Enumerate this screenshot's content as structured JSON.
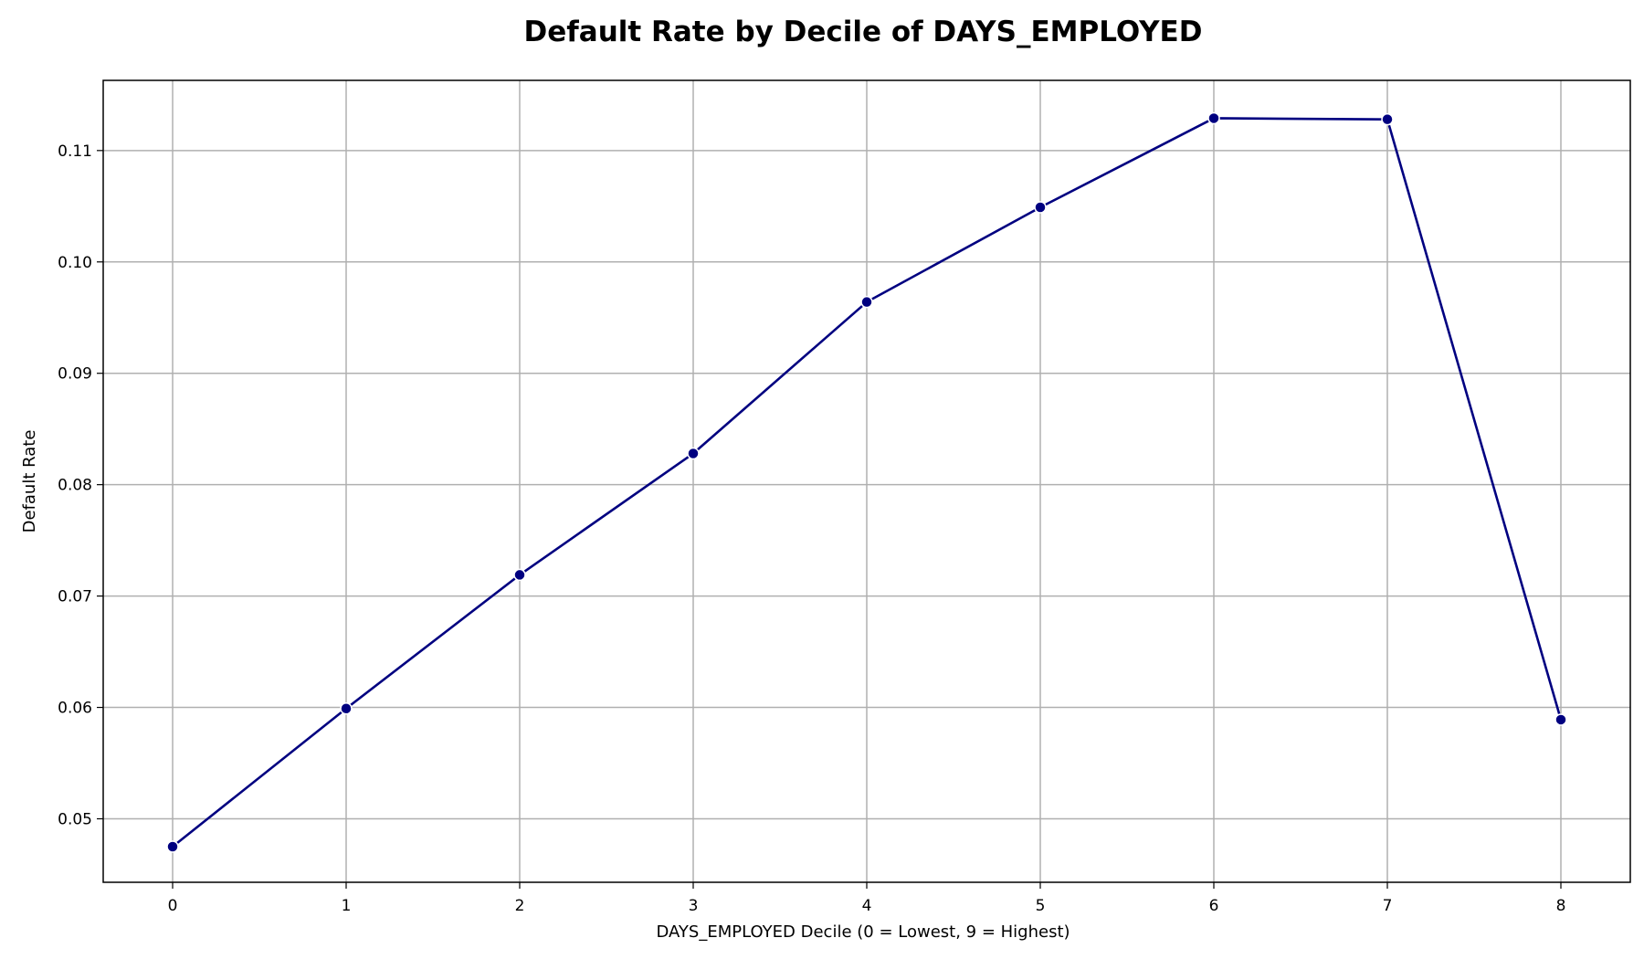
{
  "chart_data": {
    "type": "line",
    "title": "Default Rate by Decile of DAYS_EMPLOYED",
    "xlabel": "DAYS_EMPLOYED Decile (0 = Lowest, 9 = Highest)",
    "ylabel": "Default Rate",
    "x": [
      0,
      1,
      2,
      3,
      4,
      5,
      6,
      7,
      8
    ],
    "series": [
      {
        "values": [
          0.0475,
          0.0599,
          0.0719,
          0.0828,
          0.0964,
          0.1049,
          0.1129,
          0.1128,
          0.0589
        ],
        "color": "#000080",
        "marker": "circle"
      }
    ],
    "xticks": [
      "0",
      "1",
      "2",
      "3",
      "4",
      "5",
      "6",
      "7",
      "8"
    ],
    "yticks": [
      0.05,
      0.06,
      0.07,
      0.08,
      0.09,
      0.1,
      0.11
    ],
    "ytick_labels": [
      "0.05",
      "0.06",
      "0.07",
      "0.08",
      "0.09",
      "0.10",
      "0.11"
    ],
    "xlim": [
      -0.4,
      8.4
    ],
    "ylim": [
      0.0443,
      0.1163
    ],
    "grid": true,
    "legend": "none"
  }
}
